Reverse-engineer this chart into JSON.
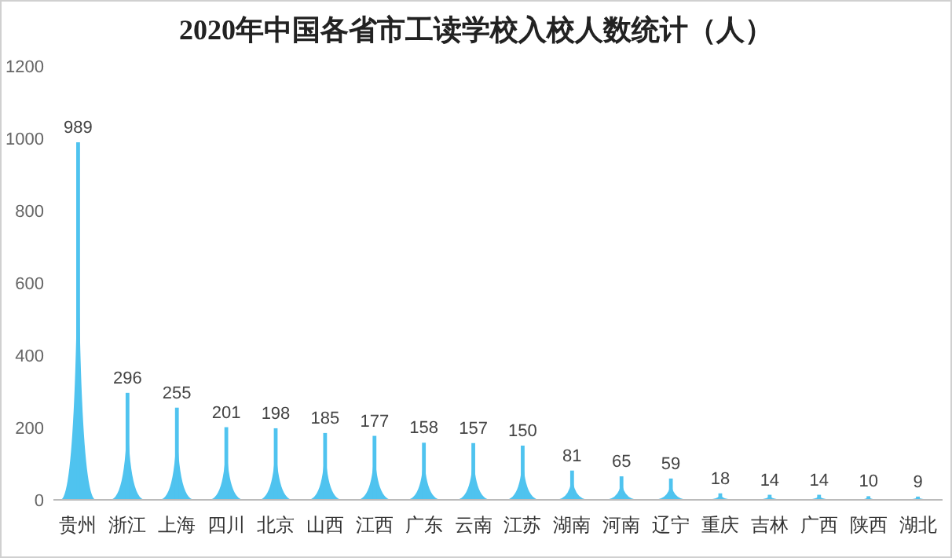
{
  "chart_data": {
    "type": "bar",
    "title": "2020年中国各省市工读学校入校人数统计（人）",
    "categories": [
      "贵州",
      "浙江",
      "上海",
      "四川",
      "北京",
      "山西",
      "江西",
      "广东",
      "云南",
      "江苏",
      "湖南",
      "河南",
      "辽宁",
      "重庆",
      "吉林",
      "广西",
      "陕西",
      "湖北"
    ],
    "values": [
      989,
      296,
      255,
      201,
      198,
      185,
      177,
      158,
      157,
      150,
      81,
      65,
      59,
      18,
      14,
      14,
      10,
      9
    ],
    "color": "#4fc3ef",
    "ylim": [
      0,
      1200
    ],
    "yticks": [
      0,
      200,
      400,
      600,
      800,
      1000,
      1200
    ],
    "grid": false,
    "data_labels": true
  }
}
